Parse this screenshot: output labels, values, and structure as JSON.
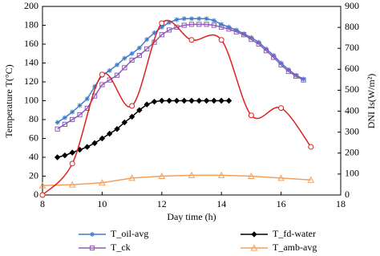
{
  "chart_data": {
    "type": "line",
    "xlabel": "Day time (h)",
    "ylabel": "Temperature T(°C)",
    "y2label": "DNI Is(W/m²)",
    "xlim": [
      8,
      18
    ],
    "xticks": [
      8,
      10,
      12,
      14,
      16,
      18
    ],
    "ylim": [
      0,
      200
    ],
    "yticks": [
      0,
      20,
      40,
      60,
      80,
      100,
      120,
      140,
      160,
      180,
      200
    ],
    "y2lim": [
      0,
      900
    ],
    "y2ticks": [
      0,
      100,
      200,
      300,
      400,
      500,
      600,
      700,
      800,
      900
    ],
    "legend": "bottom",
    "series": [
      {
        "name": "T_oil-avg",
        "color": "#3d7cc9",
        "marker": "star",
        "x": [
          8.5,
          8.75,
          9,
          9.25,
          9.5,
          9.75,
          10,
          10.25,
          10.5,
          10.75,
          11,
          11.25,
          11.5,
          11.75,
          12,
          12.25,
          12.5,
          12.75,
          13,
          13.25,
          13.5,
          13.75,
          14,
          14.25,
          14.5,
          14.75,
          15,
          15.25,
          15.5,
          15.75,
          16,
          16.25,
          16.5,
          16.75
        ],
        "values": [
          77,
          82,
          88,
          95,
          102,
          115,
          127,
          132,
          138,
          145,
          150,
          156,
          165,
          172,
          178,
          183,
          186,
          187,
          187,
          187,
          187,
          185,
          181,
          178,
          175,
          171,
          167,
          162,
          155,
          148,
          140,
          133,
          127,
          123
        ]
      },
      {
        "name": "T_fd-water",
        "color": "#000000",
        "marker": "diamond",
        "x": [
          8.5,
          8.75,
          9,
          9.25,
          9.5,
          9.75,
          10,
          10.25,
          10.5,
          10.75,
          11,
          11.25,
          11.5,
          11.75,
          12,
          12.25,
          12.5,
          12.75,
          13,
          13.25,
          13.5,
          13.75,
          14,
          14.25
        ],
        "values": [
          40,
          42,
          45,
          48,
          51,
          55,
          60,
          65,
          70,
          77,
          83,
          90,
          96,
          99,
          100,
          100,
          100,
          100,
          100,
          100,
          100,
          100,
          100,
          100
        ]
      },
      {
        "name": "T_ck",
        "color": "#8e5bb5",
        "marker": "square",
        "x": [
          8.5,
          8.75,
          9,
          9.25,
          9.5,
          9.75,
          10,
          10.25,
          10.5,
          10.75,
          11,
          11.25,
          11.5,
          11.75,
          12,
          12.25,
          12.5,
          12.75,
          13,
          13.25,
          13.5,
          13.75,
          14,
          14.25,
          14.5,
          14.75,
          15,
          15.25,
          15.5,
          15.75,
          16,
          16.25,
          16.5,
          16.75
        ],
        "values": [
          70,
          75,
          80,
          85,
          92,
          105,
          117,
          122,
          127,
          135,
          143,
          148,
          155,
          162,
          170,
          175,
          178,
          180,
          181,
          181,
          181,
          180,
          178,
          176,
          173,
          170,
          165,
          160,
          153,
          146,
          138,
          131,
          126,
          122
        ]
      },
      {
        "name": "T_amb-avg",
        "color": "#f5a05a",
        "marker": "triangle",
        "x": [
          8,
          9,
          10,
          11,
          12,
          13,
          14,
          15,
          16,
          17
        ],
        "values": [
          10,
          11,
          13,
          18,
          20,
          21,
          21,
          20,
          18,
          16
        ]
      },
      {
        "color": "#e02020",
        "marker": "circle",
        "axis": "y2",
        "smooth": true,
        "x": [
          8,
          9,
          10,
          11,
          12,
          13,
          14,
          15,
          16,
          17
        ],
        "values": [
          0,
          150,
          575,
          425,
          820,
          740,
          740,
          380,
          415,
          230
        ]
      }
    ]
  }
}
